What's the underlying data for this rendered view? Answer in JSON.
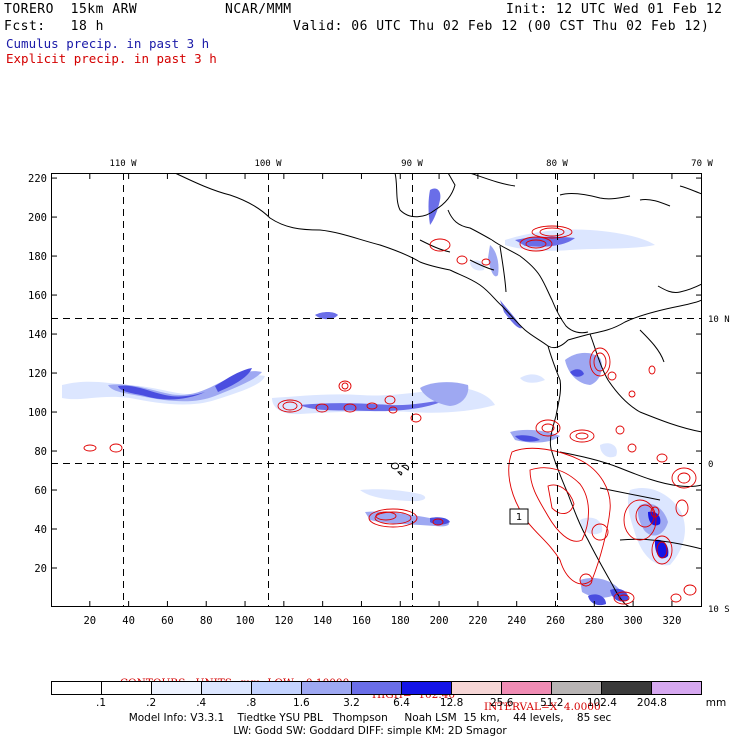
{
  "header": {
    "model": "TORERO  15km ARW",
    "org": "NCAR/MMM",
    "init": "Init: 12 UTC Wed 01 Feb 12",
    "fcst": "Fcst:   18 h",
    "valid": "Valid: 06 UTC Thu 02 Feb 12 (00 CST Thu 02 Feb 12)",
    "cumulus_label": "Cumulus precip. in past 3 h",
    "explicit_label": "Explicit precip. in past 3 h"
  },
  "colors": {
    "cumulus": "#1a1aa8",
    "explicit": "#d40000",
    "coast": "#000000",
    "contour": "#e00000"
  },
  "map": {
    "lon_labels": [
      "110 W",
      "100 W",
      "90 W",
      "80 W",
      "70 W"
    ],
    "lat_labels": [
      "10 N",
      "0",
      "10 S"
    ],
    "y_ticks": [
      "220",
      "200",
      "180",
      "160",
      "140",
      "120",
      "100",
      "80",
      "60",
      "40",
      "20"
    ],
    "x_ticks": [
      "20",
      "40",
      "60",
      "80",
      "100",
      "120",
      "140",
      "160",
      "180",
      "200",
      "220",
      "240",
      "260",
      "280",
      "300",
      "320"
    ],
    "box_label": "1"
  },
  "contour_info": {
    "contours": "CONTOURS:  UNITS=mm  LOW= 0.10000",
    "high": "HIGH=  102.40",
    "interval": "INTERVAL=X  4.0000"
  },
  "colorbar": {
    "labels": [
      ".1",
      ".2",
      ".4",
      ".8",
      "1.6",
      "3.2",
      "6.4",
      "12.8",
      "25.6",
      "51.2",
      "102.4",
      "204.8",
      "mm"
    ],
    "fills": [
      "#ffffff",
      "#ffffff",
      "#eef3ff",
      "#dce6ff",
      "#c4d3ff",
      "#9ea8f2",
      "#6a6ee8",
      "#1414e6",
      "#f6d6d6",
      "#f08cb4",
      "#b8b4b4",
      "#3a3a3a",
      "#d6a8f0"
    ]
  },
  "model_info": {
    "line1": "Model Info: V3.3.1    Tiedtke YSU PBL   Thompson     Noah LSM  15 km,    44 levels,    85 sec",
    "line2": "LW: Godd SW: Goddard DIFF: simple KM: 2D Smagor"
  }
}
